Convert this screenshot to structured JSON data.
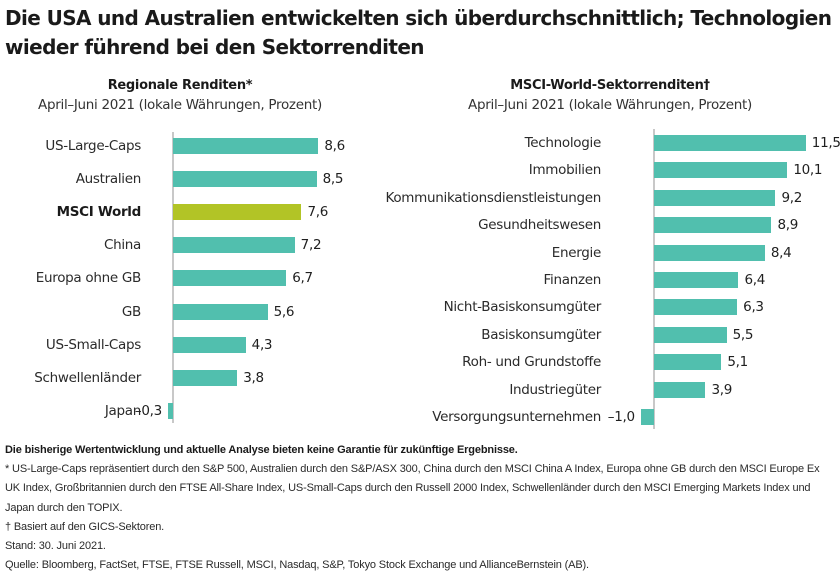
{
  "title": "Die USA und Australien entwickelten sich überdurchschnittlich; Technologien wieder führend bei den Sektorrenditen",
  "colors": {
    "bar": "#51bfae",
    "highlight": "#b2c426",
    "axis": "#c8c8c8",
    "text": "#1d1d1d"
  },
  "chart_data": [
    {
      "type": "bar",
      "orientation": "horizontal",
      "title": "Regionale Renditen*",
      "subtitle": "April–Juni 2021 (lokale Währungen, Prozent)",
      "xlabel": "",
      "ylabel": "",
      "grid": false,
      "legend": null,
      "highlight": "MSCI World",
      "categories": [
        "US-Large-Caps",
        "Australien",
        "MSCI World",
        "China",
        "Europa ohne GB",
        "GB",
        "US-Small-Caps",
        "Schwellenländer",
        "Japan"
      ],
      "values": [
        8.6,
        8.5,
        7.6,
        7.2,
        6.7,
        5.6,
        4.3,
        3.8,
        -0.3
      ],
      "value_labels": [
        "8,6",
        "8,5",
        "7,6",
        "7,2",
        "6,7",
        "5,6",
        "4,3",
        "3,8",
        "–0,3"
      ]
    },
    {
      "type": "bar",
      "orientation": "horizontal",
      "title": "MSCI-World-Sektorrenditen†",
      "subtitle": "April–Juni 2021 (lokale Währungen, Prozent)",
      "xlabel": "",
      "ylabel": "",
      "grid": false,
      "legend": null,
      "categories": [
        "Technologie",
        "Immobilien",
        "Kommunikationsdienstleistungen",
        "Gesundheitswesen",
        "Energie",
        "Finanzen",
        "Nicht-Basiskonsumgüter",
        "Basiskonsumgüter",
        "Roh- und Grundstoffe",
        "Industriegüter",
        "Versorgungsunternehmen"
      ],
      "values": [
        11.5,
        10.1,
        9.2,
        8.9,
        8.4,
        6.4,
        6.3,
        5.5,
        5.1,
        3.9,
        -1.0
      ],
      "value_labels": [
        "11,5",
        "10,1",
        "9,2",
        "8,9",
        "8,4",
        "6,4",
        "6,3",
        "5,5",
        "5,1",
        "3,9",
        "–1,0"
      ]
    }
  ],
  "left": {
    "title": "Regionale Renditen*",
    "subtitle": "April–Juni 2021 (lokale Währungen, Prozent)",
    "rows": [
      {
        "label": "US-Large-Caps",
        "value": 8.6,
        "text": "8,6"
      },
      {
        "label": "Australien",
        "value": 8.5,
        "text": "8,5"
      },
      {
        "label": "MSCI World",
        "value": 7.6,
        "text": "7,6"
      },
      {
        "label": "China",
        "value": 7.2,
        "text": "7,2"
      },
      {
        "label": "Europa ohne GB",
        "value": 6.7,
        "text": "6,7"
      },
      {
        "label": "GB",
        "value": 5.6,
        "text": "5,6"
      },
      {
        "label": "US-Small-Caps",
        "value": 4.3,
        "text": "4,3"
      },
      {
        "label": "Schwellenländer",
        "value": 3.8,
        "text": "3,8"
      },
      {
        "label": "Japan",
        "value": -0.3,
        "text": "–0,3"
      }
    ]
  },
  "right": {
    "title": "MSCI-World-Sektorrenditen†",
    "subtitle": "April–Juni 2021 (lokale Währungen, Prozent)",
    "rows": [
      {
        "label": "Technologie",
        "value": 11.5,
        "text": "11,5"
      },
      {
        "label": "Immobilien",
        "value": 10.1,
        "text": "10,1"
      },
      {
        "label": "Kommunikationsdienstleistungen",
        "value": 9.2,
        "text": "9,2"
      },
      {
        "label": "Gesundheitswesen",
        "value": 8.9,
        "text": "8,9"
      },
      {
        "label": "Energie",
        "value": 8.4,
        "text": "8,4"
      },
      {
        "label": "Finanzen",
        "value": 6.4,
        "text": "6,4"
      },
      {
        "label": "Nicht-Basiskonsumgüter",
        "value": 6.3,
        "text": "6,3"
      },
      {
        "label": "Basiskonsumgüter",
        "value": 5.5,
        "text": "5,5"
      },
      {
        "label": "Roh- und Grundstoffe",
        "value": 5.1,
        "text": "5,1"
      },
      {
        "label": "Industriegüter",
        "value": 3.9,
        "text": "3,9"
      },
      {
        "label": "Versorgungsunternehmen",
        "value": -1.0,
        "text": "–1,0"
      }
    ]
  },
  "notes": {
    "disclaimer": "Die bisherige Wertentwicklung und aktuelle Analyse bieten keine Garantie für zukünftige Ergebnisse.",
    "footnote_star": "* US-Large-Caps repräsentiert durch den S&P 500, Australien durch den S&P/ASX 300, China durch den MSCI China A Index, Europa ohne GB durch den MSCI Europe Ex UK Index, Großbritannien durch den FTSE All-Share Index, US-Small-Caps durch den Russell 2000 Index, Schwellenländer durch den MSCI Emerging Markets Index und Japan durch den TOPIX.",
    "footnote_dagger": "† Basiert auf den GICS-Sektoren.",
    "as_of": "Stand: 30. Juni 2021.",
    "source": "Quelle: Bloomberg, FactSet, FTSE, FTSE Russell, MSCI, Nasdaq, S&P, Tokyo Stock Exchange und AllianceBernstein (AB)."
  }
}
